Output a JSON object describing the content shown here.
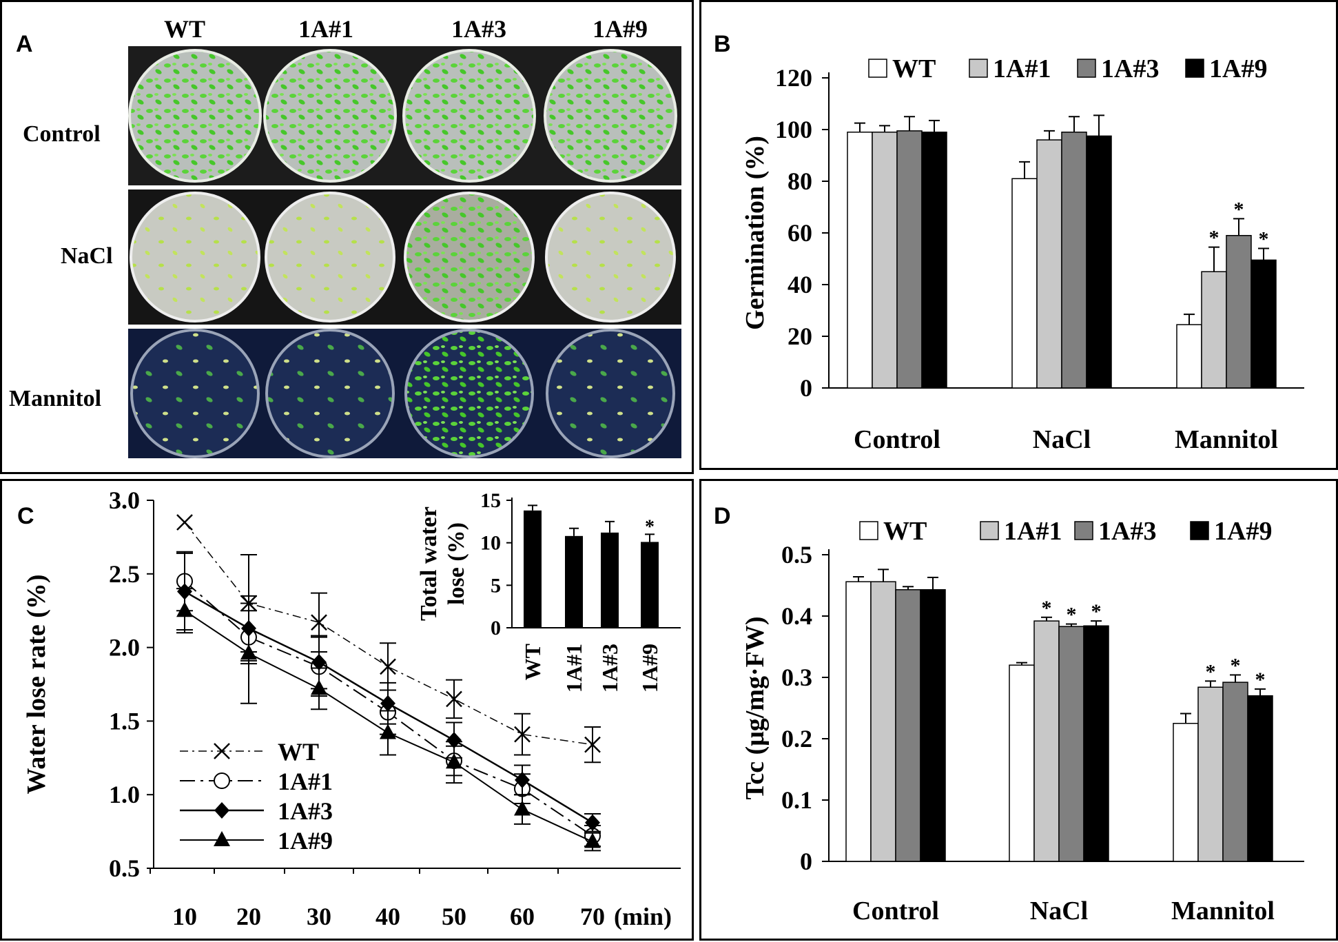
{
  "panel_labels": {
    "a": "A",
    "b": "B",
    "c": "C",
    "d": "D"
  },
  "panel_a": {
    "columns": [
      "WT",
      "1A#1",
      "1A#3",
      "1A#9"
    ],
    "rows": [
      "Control",
      "NaCl",
      "Mannitol"
    ]
  },
  "colors": {
    "WT": "#ffffff",
    "1A#1": "#c8c8c8",
    "1A#3": "#808080",
    "1A#9": "#000000"
  },
  "chart_data": [
    {
      "id": "B",
      "type": "bar",
      "categories": [
        "Control",
        "NaCl",
        "Mannitol"
      ],
      "series": [
        {
          "name": "WT",
          "values": [
            99,
            81,
            24.5
          ],
          "errors": [
            3.5,
            6.5,
            4
          ]
        },
        {
          "name": "1A#1",
          "values": [
            99,
            96,
            45
          ],
          "errors": [
            2.5,
            3.5,
            9.5
          ]
        },
        {
          "name": "1A#3",
          "values": [
            99.5,
            99,
            59
          ],
          "errors": [
            5.5,
            6,
            6.5
          ]
        },
        {
          "name": "1A#9",
          "values": [
            99,
            97.5,
            49.5
          ],
          "errors": [
            4.5,
            8,
            4.5
          ]
        }
      ],
      "significance": [
        [
          null,
          null,
          null
        ],
        [
          null,
          null,
          "*"
        ],
        [
          null,
          null,
          "*"
        ],
        [
          null,
          null,
          "*"
        ]
      ],
      "ylabel": "Germination (%)",
      "ylim": [
        0,
        120
      ],
      "yticks": [
        "0",
        "20",
        "40",
        "60",
        "80",
        "100",
        "120"
      ],
      "legend": "top"
    },
    {
      "id": "C",
      "type": "line",
      "x": [
        10,
        20,
        30,
        40,
        50,
        60,
        70
      ],
      "xticks": [
        "10",
        "20",
        "30",
        "40",
        "50",
        "60",
        "70"
      ],
      "xunit": "(min)",
      "series": [
        {
          "name": "WT",
          "marker": "x",
          "values": [
            2.85,
            2.3,
            2.17,
            1.87,
            1.65,
            1.41,
            1.34
          ],
          "errors": [
            0,
            0.33,
            0.2,
            0.16,
            0.13,
            0.14,
            0.12
          ]
        },
        {
          "name": "1A#1",
          "marker": "circle",
          "values": [
            2.45,
            2.07,
            1.87,
            1.56,
            1.23,
            1.04,
            0.72
          ],
          "errors": [
            0.2,
            0.18,
            0.2,
            0.15,
            0.1,
            0.1,
            0.07
          ]
        },
        {
          "name": "1A#3",
          "marker": "diamond",
          "values": [
            2.38,
            2.13,
            1.9,
            1.62,
            1.37,
            1.1,
            0.81
          ],
          "errors": [
            0.26,
            0.22,
            0.18,
            0.14,
            0.12,
            0.1,
            0.06
          ]
        },
        {
          "name": "1A#9",
          "marker": "triangle",
          "values": [
            2.25,
            1.96,
            1.72,
            1.42,
            1.22,
            0.9,
            0.68
          ],
          "errors": [
            0.15,
            0.34,
            0.14,
            0.15,
            0.14,
            0.1,
            0.06
          ]
        }
      ],
      "ylabel": "Water lose rate (%)",
      "ylim": [
        0.5,
        3.0
      ],
      "yticks": [
        "0.5",
        "1.0",
        "1.5",
        "2.0",
        "2.5",
        "3.0"
      ],
      "legend": "bottom-left",
      "inset": {
        "type": "bar",
        "categories": [
          "WT",
          "1A#1",
          "1A#3",
          "1A#9"
        ],
        "values": [
          13.8,
          10.8,
          11.2,
          10.1
        ],
        "errors": [
          0.6,
          0.9,
          1.3,
          0.9
        ],
        "significance": [
          null,
          null,
          null,
          "*"
        ],
        "ylabel_line1": "Total water",
        "ylabel_line2": "lose (%)",
        "ylim": [
          0,
          15
        ],
        "yticks": [
          "0",
          "5",
          "10",
          "15"
        ]
      }
    },
    {
      "id": "D",
      "type": "bar",
      "categories": [
        "Control",
        "NaCl",
        "Mannitol"
      ],
      "series": [
        {
          "name": "WT",
          "values": [
            0.456,
            0.32,
            0.225
          ],
          "errors": [
            0.008,
            0.004,
            0.016
          ]
        },
        {
          "name": "1A#1",
          "values": [
            0.456,
            0.392,
            0.284
          ],
          "errors": [
            0.02,
            0.006,
            0.01
          ]
        },
        {
          "name": "1A#3",
          "values": [
            0.443,
            0.383,
            0.292
          ],
          "errors": [
            0.005,
            0.004,
            0.012
          ]
        },
        {
          "name": "1A#9",
          "values": [
            0.443,
            0.384,
            0.27
          ],
          "errors": [
            0.02,
            0.008,
            0.011
          ]
        }
      ],
      "significance": [
        [
          null,
          null,
          null
        ],
        [
          null,
          "*",
          "*"
        ],
        [
          null,
          "*",
          "*"
        ],
        [
          null,
          "*",
          "*"
        ]
      ],
      "ylabel": "Tcc (μg/mg·FW)",
      "ylim": [
        0,
        0.5
      ],
      "yticks": [
        "0",
        "0.1",
        "0.2",
        "0.3",
        "0.4",
        "0.5"
      ],
      "legend": "top"
    }
  ]
}
